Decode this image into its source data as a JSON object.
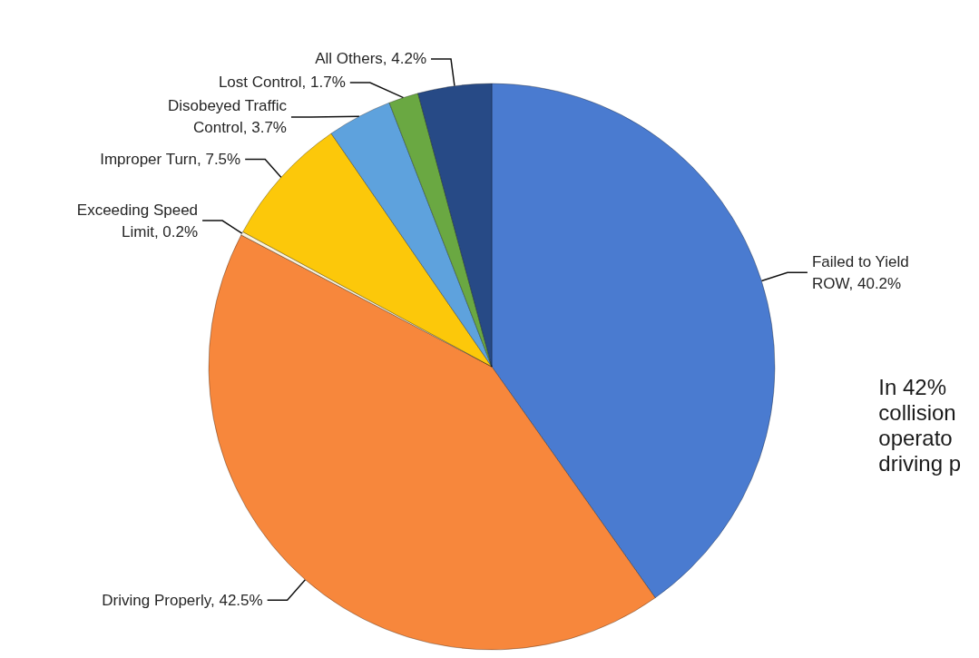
{
  "chart_data": {
    "type": "pie",
    "categories": [
      "Failed to Yield ROW",
      "Driving Properly",
      "Exceeding Speed Limit",
      "Improper Turn",
      "Disobeyed Traffic Control",
      "Lost Control",
      "All Others"
    ],
    "values": [
      40.2,
      42.5,
      0.2,
      7.5,
      3.7,
      1.7,
      4.2
    ],
    "value_labels": [
      "40.2%",
      "42.5%",
      "0.2%",
      "7.5%",
      "3.7%",
      "1.7%",
      "4.2%"
    ],
    "colors": [
      "#4a7bd0",
      "#f7873c",
      "#fbf3dc",
      "#fcc80a",
      "#5ea2dd",
      "#6aa842",
      "#274a86"
    ],
    "annotations": [
      "In 42%\ncollision\noperato\ndriving p"
    ]
  }
}
